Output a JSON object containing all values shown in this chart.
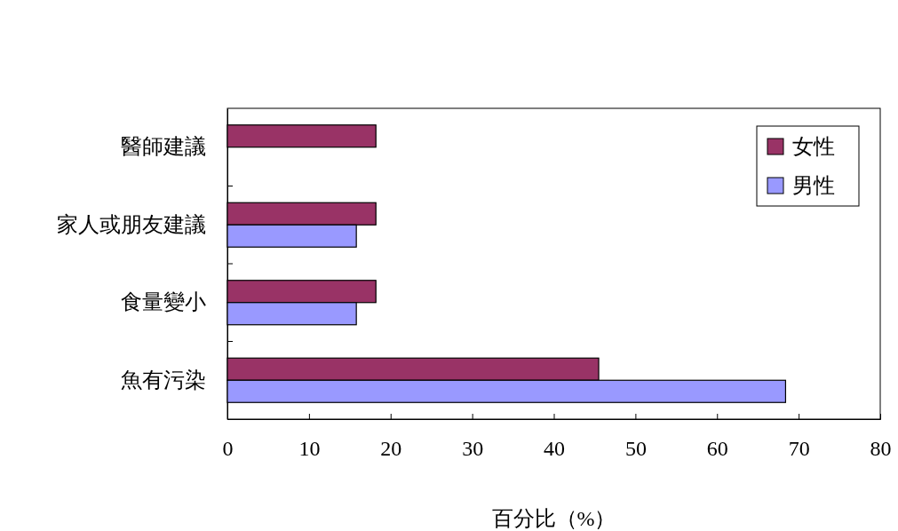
{
  "chart_data": {
    "type": "bar",
    "orientation": "horizontal",
    "xlabel": "百分比（%）",
    "categories": [
      "醫師建議",
      "家人或朋友建議",
      "食量變小",
      "魚有污染"
    ],
    "series": [
      {
        "name": "女性",
        "color": "#993366",
        "values": [
          18.2,
          18.2,
          18.2,
          45.5
        ]
      },
      {
        "name": "男性",
        "color": "#9999ff",
        "values": [
          null,
          15.8,
          15.8,
          68.4
        ]
      }
    ],
    "xlim": [
      0,
      80
    ],
    "xticks": [
      0,
      10,
      20,
      30,
      40,
      50,
      60,
      70,
      80
    ],
    "grid": false,
    "legend": "top right"
  }
}
